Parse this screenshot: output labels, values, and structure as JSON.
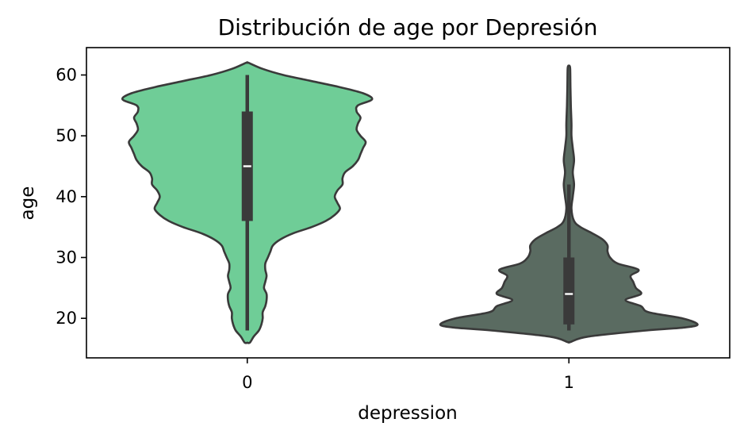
{
  "chart_data": {
    "type": "violin",
    "title": "Distribución de age por Depresión",
    "xlabel": "depression",
    "ylabel": "age",
    "categories": [
      "0",
      "1"
    ],
    "yticks": [
      20,
      30,
      40,
      50,
      60
    ],
    "ylim": [
      13.5,
      64.5
    ],
    "grid": false,
    "legend": "none",
    "edge_color": "#3a3a3a",
    "violins": [
      {
        "category": "0",
        "color": "#6fcd97",
        "box": {
          "min": 18,
          "q1": 36,
          "median": 45,
          "q3": 54,
          "max": 60
        },
        "profile_relative_halfwidth": [
          [
            16,
            0.02
          ],
          [
            17,
            0.05
          ],
          [
            18,
            0.09
          ],
          [
            19,
            0.11
          ],
          [
            20,
            0.12
          ],
          [
            21,
            0.12
          ],
          [
            22,
            0.14
          ],
          [
            23,
            0.15
          ],
          [
            24,
            0.15
          ],
          [
            25,
            0.13
          ],
          [
            26,
            0.14
          ],
          [
            27,
            0.15
          ],
          [
            28,
            0.14
          ],
          [
            29,
            0.14
          ],
          [
            30,
            0.16
          ],
          [
            31,
            0.18
          ],
          [
            32,
            0.2
          ],
          [
            33,
            0.26
          ],
          [
            34,
            0.36
          ],
          [
            35,
            0.5
          ],
          [
            36,
            0.61
          ],
          [
            37,
            0.68
          ],
          [
            38,
            0.72
          ],
          [
            39,
            0.7
          ],
          [
            40,
            0.68
          ],
          [
            41,
            0.7
          ],
          [
            42,
            0.74
          ],
          [
            43,
            0.74
          ],
          [
            44,
            0.76
          ],
          [
            45,
            0.82
          ],
          [
            46,
            0.86
          ],
          [
            47,
            0.88
          ],
          [
            48,
            0.9
          ],
          [
            49,
            0.92
          ],
          [
            50,
            0.88
          ],
          [
            51,
            0.85
          ],
          [
            52,
            0.86
          ],
          [
            53,
            0.88
          ],
          [
            54,
            0.85
          ],
          [
            55,
            0.86
          ],
          [
            56,
            0.97
          ],
          [
            57,
            0.9
          ],
          [
            58,
            0.72
          ],
          [
            59,
            0.5
          ],
          [
            60,
            0.28
          ],
          [
            61,
            0.12
          ],
          [
            62,
            0.01
          ]
        ]
      },
      {
        "category": "1",
        "color": "#5a6b61",
        "box": {
          "min": 18,
          "q1": 19,
          "median": 24,
          "q3": 30,
          "max": 42
        },
        "profile_relative_halfwidth": [
          [
            16.1,
            0.01
          ],
          [
            17,
            0.15
          ],
          [
            18,
            0.6
          ],
          [
            18.5,
            0.9
          ],
          [
            19,
            1.0
          ],
          [
            20,
            0.88
          ],
          [
            21,
            0.62
          ],
          [
            22,
            0.56
          ],
          [
            23,
            0.44
          ],
          [
            24,
            0.56
          ],
          [
            25,
            0.52
          ],
          [
            26,
            0.5
          ],
          [
            27,
            0.48
          ],
          [
            28,
            0.54
          ],
          [
            29,
            0.38
          ],
          [
            30,
            0.32
          ],
          [
            31,
            0.3
          ],
          [
            32,
            0.3
          ],
          [
            33,
            0.26
          ],
          [
            34,
            0.18
          ],
          [
            35,
            0.09
          ],
          [
            36,
            0.04
          ],
          [
            38,
            0.02
          ],
          [
            40,
            0.03
          ],
          [
            42,
            0.04
          ],
          [
            44,
            0.03
          ],
          [
            46,
            0.04
          ],
          [
            48,
            0.03
          ],
          [
            50,
            0.02
          ],
          [
            52,
            0.02
          ],
          [
            55,
            0.015
          ],
          [
            58,
            0.012
          ],
          [
            61,
            0.01
          ],
          [
            61.5,
            0.005
          ]
        ]
      }
    ]
  }
}
